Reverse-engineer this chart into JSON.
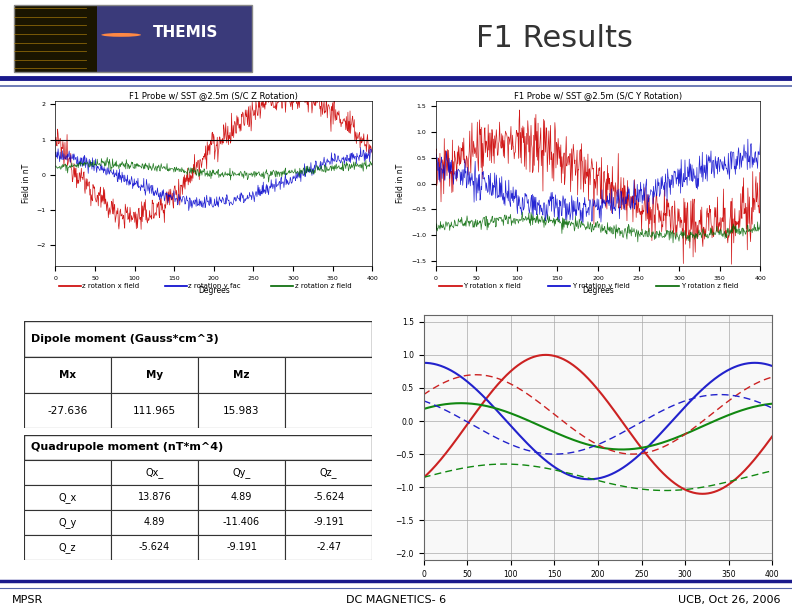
{
  "title": "F1 Results",
  "background_color": "#ffffff",
  "title_fontsize": 22,
  "title_color": "#333333",
  "footer_left": "MPSR",
  "footer_center": "DC MAGNETICS- 6",
  "footer_right": "UCB, Oct 26, 2006",
  "footer_fontsize": 8,
  "dipole_title": "Dipole moment (Gauss*cm^3)",
  "dipole_headers": [
    "Mx",
    "My",
    "Mz",
    ""
  ],
  "dipole_values": [
    "-27.636",
    "111.965",
    "15.983",
    ""
  ],
  "quadrupole_title": "Quadrupole moment (nT*m^4)",
  "quad_col_headers": [
    "",
    "Qx_",
    "Qy_",
    "Qz_"
  ],
  "quad_row_headers": [
    "Q_x",
    "Q_y",
    "Q_z"
  ],
  "quad_data": [
    [
      "13.876",
      "4.89",
      "-5.624"
    ],
    [
      "4.89",
      "-11.406",
      "-9.191"
    ],
    [
      "-5.624",
      "-9.191",
      "-2.47"
    ]
  ],
  "plot1_title": "F1 Probe w/ SST @2.5m (S/C Z Rotation)",
  "plot2_title": "F1 Probe w/ SST @2.5m (S/C Y Rotation)",
  "plot_xlabel": "Degrees",
  "plot_ylabel": "Field in nT",
  "plot1_legend": [
    "z rotation x field",
    "z rotation y fac",
    "z rotation z field"
  ],
  "plot2_legend": [
    "Y rotation x field",
    "Y rotation y field",
    "Y rotation z field"
  ],
  "plot_colors": [
    "#cc0000",
    "#0000cc",
    "#006600"
  ],
  "header_bg": "#2a2a3a",
  "blue_line_color": "#1a1a8c",
  "blue_line2_color": "#5566aa"
}
